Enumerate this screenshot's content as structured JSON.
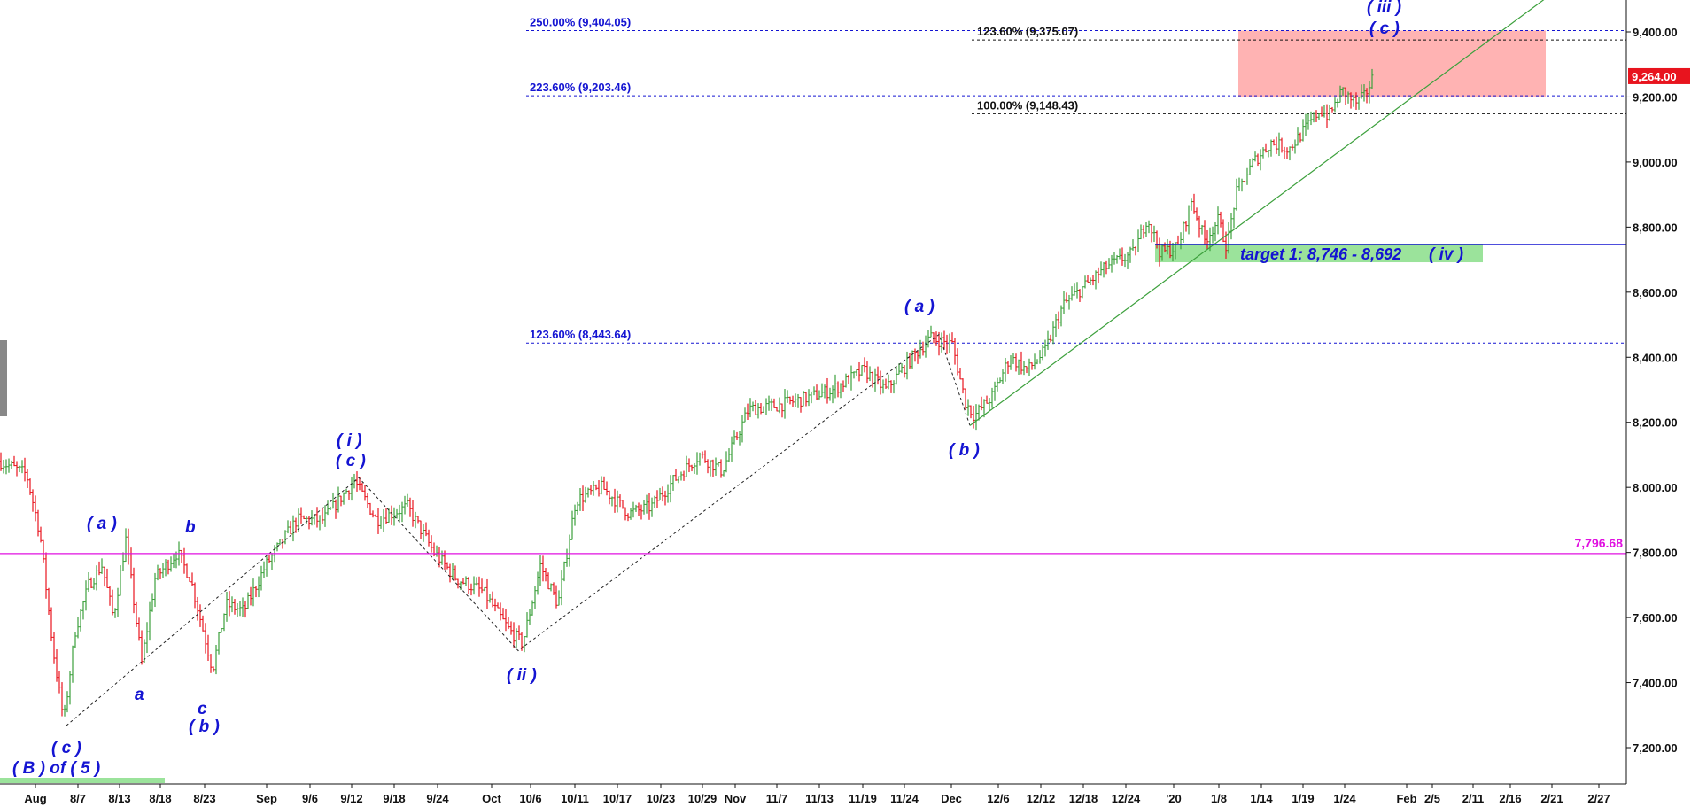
{
  "chart_data": {
    "type": "candlestick",
    "y_axis": {
      "range": [
        7130,
        9480
      ],
      "side": "right",
      "ticks": [
        7200,
        7400,
        7600,
        7800,
        8000,
        8200,
        8400,
        8600,
        8800,
        9000,
        9200,
        9400
      ],
      "tick_labels": [
        "7,200.00",
        "7,400.00",
        "7,600.00",
        "7,800.00",
        "8,000.00",
        "8,200.00",
        "8,400.00",
        "8,600.00",
        "8,800.00",
        "9,000.00",
        "9,200.00",
        "9,400.00"
      ]
    },
    "x_axis": {
      "labels": [
        "Aug",
        "8/7",
        "8/13",
        "8/18",
        "8/23",
        "Sep",
        "9/6",
        "9/12",
        "9/18",
        "9/24",
        "Oct",
        "10/6",
        "10/11",
        "10/17",
        "10/23",
        "10/29",
        "Nov",
        "11/7",
        "11/13",
        "11/19",
        "11/24",
        "Dec",
        "12/6",
        "12/12",
        "12/18",
        "12/24",
        "'20",
        "1/8",
        "1/14",
        "1/19",
        "1/24",
        "Feb",
        "2/5",
        "2/11",
        "2/16",
        "2/21",
        "2/27"
      ]
    },
    "last_price": {
      "value": 9264,
      "label": "9,264.00",
      "color": "#e8141e"
    },
    "horizontal_level": {
      "value": 7796.68,
      "label": "7,796.68",
      "color": "#e010e0"
    },
    "fib_levels": [
      {
        "label": "250.00% (9,404.05)",
        "value": 9404.05,
        "color": "#1414d2"
      },
      {
        "label": "223.60% (9,203.46)",
        "value": 9203.46,
        "color": "#1414d2"
      },
      {
        "label": "123.60% (8,443.64)",
        "value": 8443.64,
        "color": "#1414d2"
      },
      {
        "label": "123.60% (9,375.07)",
        "value": 9375.07,
        "color": "#111111"
      },
      {
        "label": "100.00% (9,148.43)",
        "value": 9148.43,
        "color": "#111111"
      }
    ],
    "target_zone": {
      "label": "target 1: 8,746 - 8,692",
      "high": 8746,
      "low": 8692,
      "color": "#9be39b"
    },
    "resistance_zone": {
      "high": 9404,
      "low": 9200,
      "color": "#ffb3b3"
    },
    "wave_labels": [
      "( iii )",
      "( c )",
      "( a )",
      "( b )",
      "( i )",
      "( c )",
      "( a )",
      "b",
      "a",
      "c",
      "( b )",
      "( ii )",
      "( c )",
      "( B ) of ( 5 )",
      "( iv )"
    ],
    "series_colors": {
      "up": "#3ca03c",
      "down": "#e8141e"
    }
  }
}
